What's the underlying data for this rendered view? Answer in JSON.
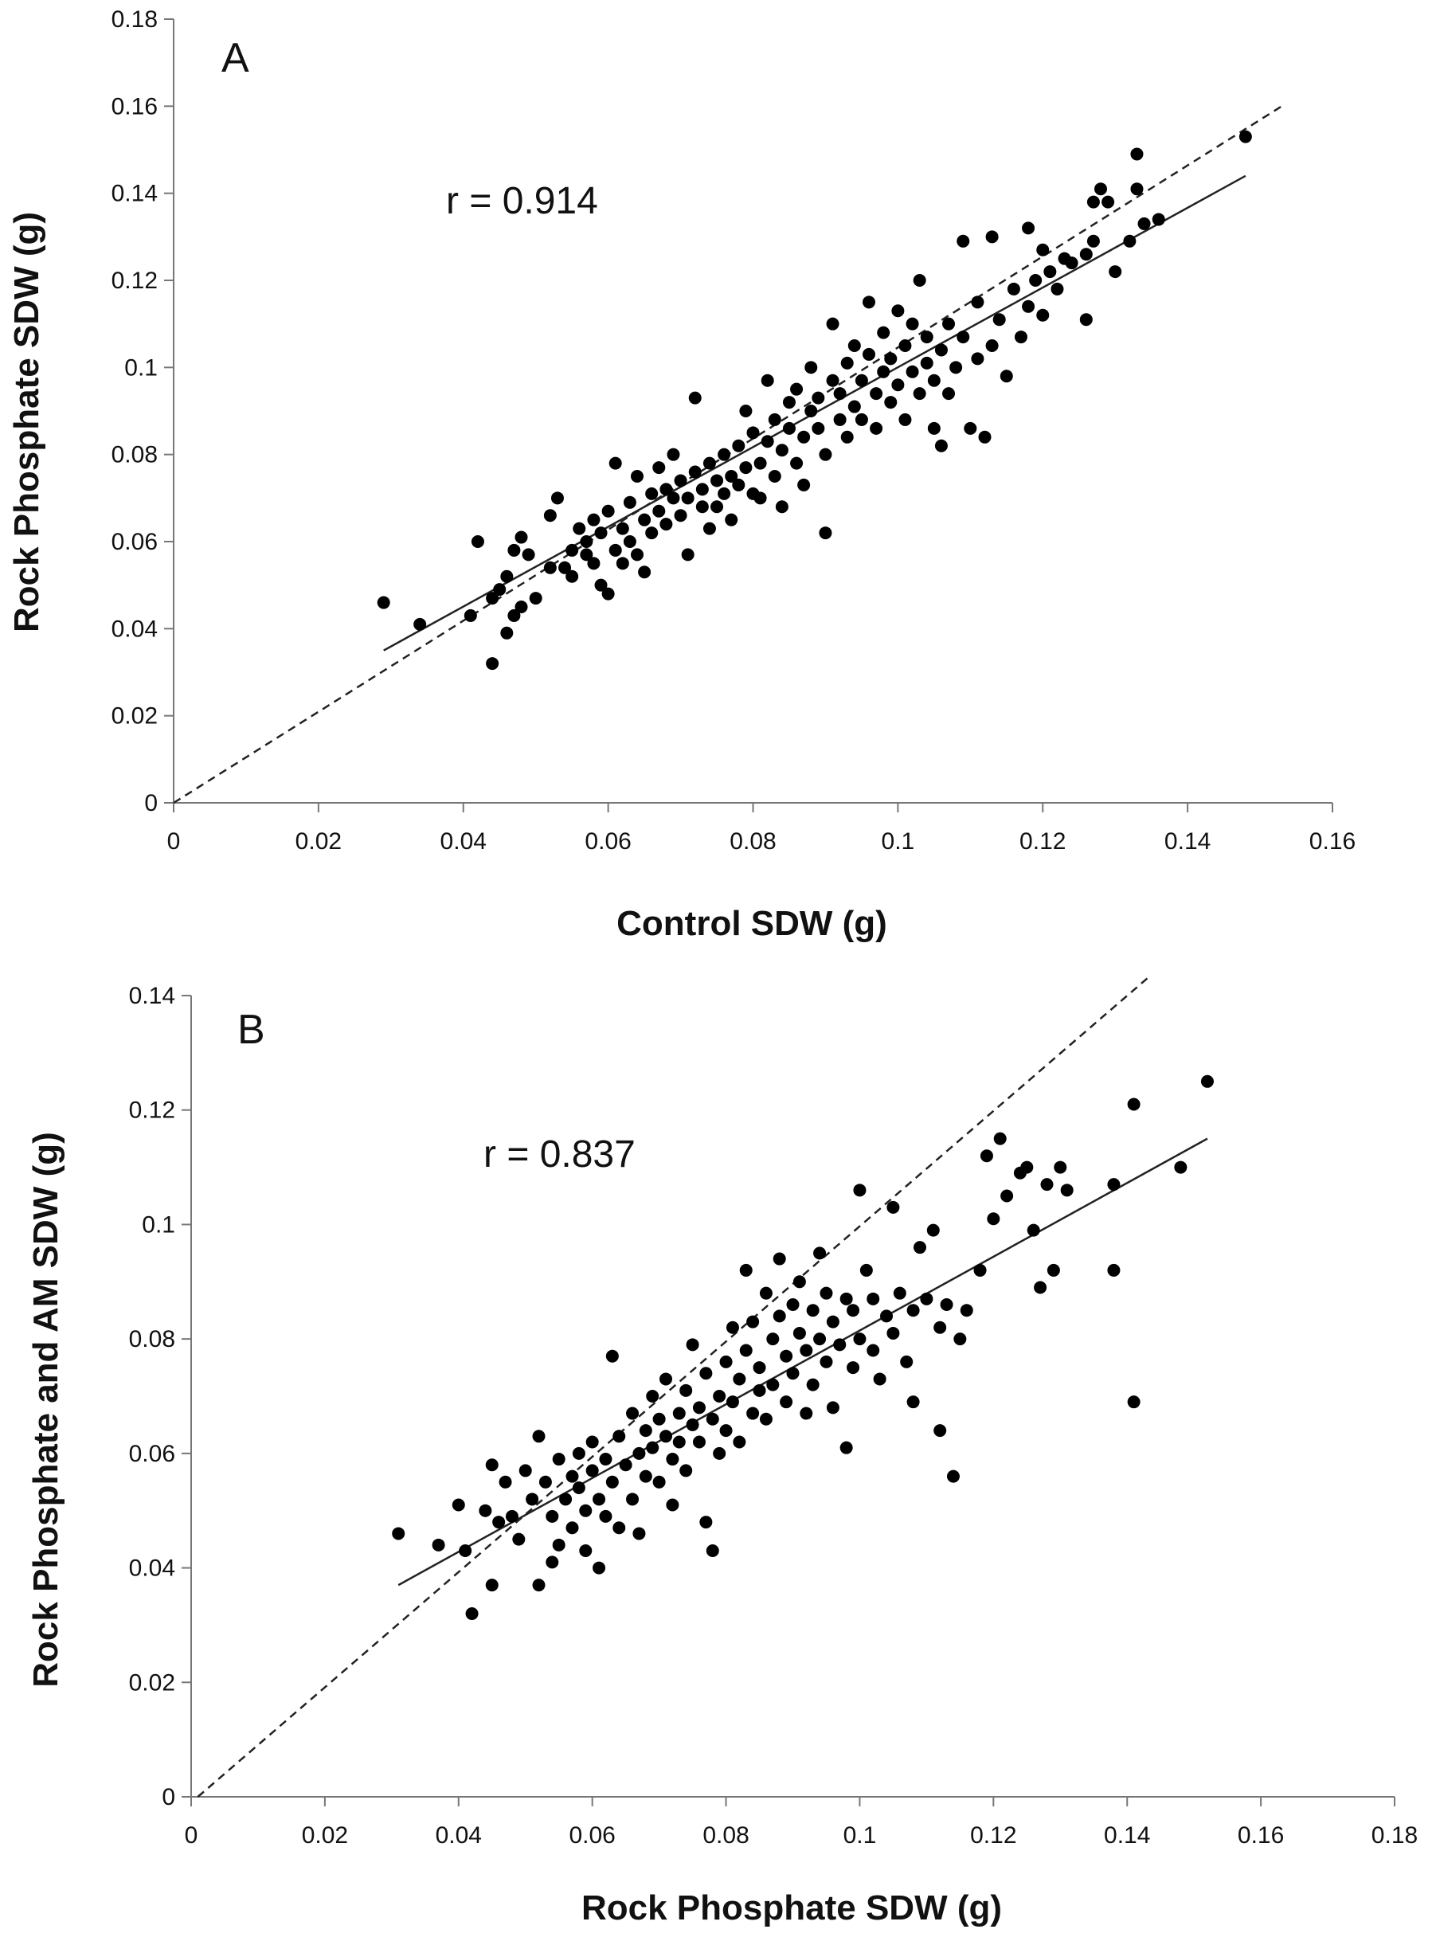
{
  "chart_data": [
    {
      "type": "scatter",
      "panel_label": "A",
      "r_label": "r = 0.914",
      "xlabel": "Control SDW (g)",
      "ylabel": "Rock Phosphate SDW (g)",
      "xlim": [
        0,
        0.16
      ],
      "ylim": [
        0,
        0.18
      ],
      "x_ticks": [
        "0",
        "0.02",
        "0.04",
        "0.06",
        "0.08",
        "0.1",
        "0.12",
        "0.14",
        "0.16"
      ],
      "y_ticks": [
        "0",
        "0.02",
        "0.04",
        "0.06",
        "0.08",
        "0.1",
        "0.12",
        "0.14",
        "0.16",
        "0.18"
      ],
      "fit_line": {
        "x1": 0.029,
        "y1": 0.035,
        "x2": 0.148,
        "y2": 0.144,
        "style": "solid"
      },
      "identity_line": {
        "x1": 0,
        "y1": 0,
        "x2": 0.153,
        "y2": 0.16,
        "style": "dashed"
      },
      "points": [
        [
          0.029,
          0.046
        ],
        [
          0.034,
          0.041
        ],
        [
          0.041,
          0.043
        ],
        [
          0.042,
          0.06
        ],
        [
          0.044,
          0.032
        ],
        [
          0.044,
          0.047
        ],
        [
          0.045,
          0.049
        ],
        [
          0.046,
          0.039
        ],
        [
          0.046,
          0.052
        ],
        [
          0.047,
          0.058
        ],
        [
          0.047,
          0.043
        ],
        [
          0.048,
          0.061
        ],
        [
          0.048,
          0.045
        ],
        [
          0.049,
          0.057
        ],
        [
          0.05,
          0.047
        ],
        [
          0.052,
          0.054
        ],
        [
          0.052,
          0.066
        ],
        [
          0.053,
          0.07
        ],
        [
          0.054,
          0.054
        ],
        [
          0.055,
          0.058
        ],
        [
          0.055,
          0.052
        ],
        [
          0.056,
          0.063
        ],
        [
          0.057,
          0.057
        ],
        [
          0.057,
          0.06
        ],
        [
          0.058,
          0.065
        ],
        [
          0.058,
          0.055
        ],
        [
          0.059,
          0.062
        ],
        [
          0.059,
          0.05
        ],
        [
          0.06,
          0.067
        ],
        [
          0.06,
          0.048
        ],
        [
          0.061,
          0.058
        ],
        [
          0.061,
          0.078
        ],
        [
          0.062,
          0.063
        ],
        [
          0.062,
          0.055
        ],
        [
          0.063,
          0.06
        ],
        [
          0.063,
          0.069
        ],
        [
          0.064,
          0.057
        ],
        [
          0.064,
          0.075
        ],
        [
          0.065,
          0.065
        ],
        [
          0.065,
          0.053
        ],
        [
          0.066,
          0.071
        ],
        [
          0.066,
          0.062
        ],
        [
          0.067,
          0.067
        ],
        [
          0.067,
          0.077
        ],
        [
          0.068,
          0.072
        ],
        [
          0.068,
          0.064
        ],
        [
          0.069,
          0.07
        ],
        [
          0.069,
          0.08
        ],
        [
          0.07,
          0.066
        ],
        [
          0.07,
          0.074
        ],
        [
          0.071,
          0.07
        ],
        [
          0.071,
          0.057
        ],
        [
          0.072,
          0.076
        ],
        [
          0.072,
          0.093
        ],
        [
          0.073,
          0.068
        ],
        [
          0.073,
          0.072
        ],
        [
          0.074,
          0.078
        ],
        [
          0.074,
          0.063
        ],
        [
          0.075,
          0.074
        ],
        [
          0.075,
          0.068
        ],
        [
          0.076,
          0.08
        ],
        [
          0.076,
          0.071
        ],
        [
          0.077,
          0.075
        ],
        [
          0.077,
          0.065
        ],
        [
          0.078,
          0.082
        ],
        [
          0.078,
          0.073
        ],
        [
          0.079,
          0.077
        ],
        [
          0.079,
          0.09
        ],
        [
          0.08,
          0.071
        ],
        [
          0.08,
          0.085
        ],
        [
          0.081,
          0.078
        ],
        [
          0.081,
          0.07
        ],
        [
          0.082,
          0.083
        ],
        [
          0.082,
          0.097
        ],
        [
          0.083,
          0.075
        ],
        [
          0.083,
          0.088
        ],
        [
          0.084,
          0.081
        ],
        [
          0.084,
          0.068
        ],
        [
          0.085,
          0.086
        ],
        [
          0.085,
          0.092
        ],
        [
          0.086,
          0.078
        ],
        [
          0.086,
          0.095
        ],
        [
          0.087,
          0.084
        ],
        [
          0.087,
          0.073
        ],
        [
          0.088,
          0.09
        ],
        [
          0.088,
          0.1
        ],
        [
          0.089,
          0.086
        ],
        [
          0.089,
          0.093
        ],
        [
          0.09,
          0.08
        ],
        [
          0.09,
          0.062
        ],
        [
          0.091,
          0.097
        ],
        [
          0.091,
          0.11
        ],
        [
          0.092,
          0.088
        ],
        [
          0.092,
          0.094
        ],
        [
          0.093,
          0.084
        ],
        [
          0.093,
          0.101
        ],
        [
          0.094,
          0.091
        ],
        [
          0.094,
          0.105
        ],
        [
          0.095,
          0.097
        ],
        [
          0.095,
          0.088
        ],
        [
          0.096,
          0.103
        ],
        [
          0.096,
          0.115
        ],
        [
          0.097,
          0.094
        ],
        [
          0.097,
          0.086
        ],
        [
          0.098,
          0.099
        ],
        [
          0.098,
          0.108
        ],
        [
          0.099,
          0.092
        ],
        [
          0.099,
          0.102
        ],
        [
          0.1,
          0.096
        ],
        [
          0.1,
          0.113
        ],
        [
          0.101,
          0.105
        ],
        [
          0.101,
          0.088
        ],
        [
          0.102,
          0.099
        ],
        [
          0.102,
          0.11
        ],
        [
          0.103,
          0.094
        ],
        [
          0.103,
          0.12
        ],
        [
          0.104,
          0.101
        ],
        [
          0.104,
          0.107
        ],
        [
          0.105,
          0.097
        ],
        [
          0.105,
          0.086
        ],
        [
          0.106,
          0.104
        ],
        [
          0.106,
          0.082
        ],
        [
          0.107,
          0.11
        ],
        [
          0.107,
          0.094
        ],
        [
          0.108,
          0.1
        ],
        [
          0.109,
          0.129
        ],
        [
          0.109,
          0.107
        ],
        [
          0.11,
          0.086
        ],
        [
          0.111,
          0.115
        ],
        [
          0.111,
          0.102
        ],
        [
          0.112,
          0.084
        ],
        [
          0.113,
          0.13
        ],
        [
          0.113,
          0.105
        ],
        [
          0.114,
          0.111
        ],
        [
          0.115,
          0.098
        ],
        [
          0.116,
          0.118
        ],
        [
          0.117,
          0.107
        ],
        [
          0.118,
          0.132
        ],
        [
          0.118,
          0.114
        ],
        [
          0.119,
          0.12
        ],
        [
          0.12,
          0.112
        ],
        [
          0.12,
          0.127
        ],
        [
          0.121,
          0.122
        ],
        [
          0.122,
          0.118
        ],
        [
          0.123,
          0.125
        ],
        [
          0.124,
          0.124
        ],
        [
          0.126,
          0.126
        ],
        [
          0.126,
          0.111
        ],
        [
          0.127,
          0.129
        ],
        [
          0.127,
          0.138
        ],
        [
          0.128,
          0.141
        ],
        [
          0.129,
          0.138
        ],
        [
          0.13,
          0.122
        ],
        [
          0.132,
          0.129
        ],
        [
          0.133,
          0.141
        ],
        [
          0.133,
          0.149
        ],
        [
          0.134,
          0.133
        ],
        [
          0.136,
          0.134
        ],
        [
          0.148,
          0.153
        ]
      ]
    },
    {
      "type": "scatter",
      "panel_label": "B",
      "r_label": "r = 0.837",
      "xlabel": "Rock Phosphate SDW (g)",
      "ylabel": "Rock Phosphate and AM SDW (g)",
      "xlim": [
        0,
        0.18
      ],
      "ylim": [
        0,
        0.14
      ],
      "x_ticks": [
        "0",
        "0.02",
        "0.04",
        "0.06",
        "0.08",
        "0.1",
        "0.12",
        "0.14",
        "0.16",
        "0.18"
      ],
      "y_ticks": [
        "0",
        "0.02",
        "0.04",
        "0.06",
        "0.08",
        "0.1",
        "0.12",
        "0.14"
      ],
      "fit_line": {
        "x1": 0.031,
        "y1": 0.037,
        "x2": 0.152,
        "y2": 0.115,
        "style": "solid"
      },
      "identity_line": {
        "x1": 0.001,
        "y1": 0,
        "x2": 0.143,
        "y2": 0.143,
        "style": "dashed"
      },
      "points": [
        [
          0.031,
          0.046
        ],
        [
          0.037,
          0.044
        ],
        [
          0.04,
          0.051
        ],
        [
          0.041,
          0.043
        ],
        [
          0.042,
          0.032
        ],
        [
          0.044,
          0.05
        ],
        [
          0.045,
          0.037
        ],
        [
          0.045,
          0.058
        ],
        [
          0.046,
          0.048
        ],
        [
          0.047,
          0.055
        ],
        [
          0.048,
          0.049
        ],
        [
          0.049,
          0.045
        ],
        [
          0.05,
          0.057
        ],
        [
          0.051,
          0.052
        ],
        [
          0.052,
          0.037
        ],
        [
          0.052,
          0.063
        ],
        [
          0.053,
          0.055
        ],
        [
          0.054,
          0.041
        ],
        [
          0.054,
          0.049
        ],
        [
          0.055,
          0.059
        ],
        [
          0.055,
          0.044
        ],
        [
          0.056,
          0.052
        ],
        [
          0.057,
          0.056
        ],
        [
          0.057,
          0.047
        ],
        [
          0.058,
          0.054
        ],
        [
          0.058,
          0.06
        ],
        [
          0.059,
          0.05
        ],
        [
          0.059,
          0.043
        ],
        [
          0.06,
          0.057
        ],
        [
          0.06,
          0.062
        ],
        [
          0.061,
          0.052
        ],
        [
          0.061,
          0.04
        ],
        [
          0.062,
          0.059
        ],
        [
          0.062,
          0.049
        ],
        [
          0.063,
          0.077
        ],
        [
          0.063,
          0.055
        ],
        [
          0.064,
          0.063
        ],
        [
          0.064,
          0.047
        ],
        [
          0.065,
          0.058
        ],
        [
          0.066,
          0.067
        ],
        [
          0.066,
          0.052
        ],
        [
          0.067,
          0.06
        ],
        [
          0.067,
          0.046
        ],
        [
          0.068,
          0.064
        ],
        [
          0.068,
          0.056
        ],
        [
          0.069,
          0.07
        ],
        [
          0.069,
          0.061
        ],
        [
          0.07,
          0.066
        ],
        [
          0.07,
          0.055
        ],
        [
          0.071,
          0.063
        ],
        [
          0.071,
          0.073
        ],
        [
          0.072,
          0.059
        ],
        [
          0.072,
          0.051
        ],
        [
          0.073,
          0.067
        ],
        [
          0.073,
          0.062
        ],
        [
          0.074,
          0.071
        ],
        [
          0.074,
          0.057
        ],
        [
          0.075,
          0.065
        ],
        [
          0.075,
          0.079
        ],
        [
          0.076,
          0.062
        ],
        [
          0.076,
          0.068
        ],
        [
          0.077,
          0.074
        ],
        [
          0.077,
          0.048
        ],
        [
          0.078,
          0.043
        ],
        [
          0.078,
          0.066
        ],
        [
          0.079,
          0.07
        ],
        [
          0.079,
          0.06
        ],
        [
          0.08,
          0.076
        ],
        [
          0.08,
          0.064
        ],
        [
          0.081,
          0.082
        ],
        [
          0.081,
          0.069
        ],
        [
          0.082,
          0.073
        ],
        [
          0.082,
          0.062
        ],
        [
          0.083,
          0.092
        ],
        [
          0.083,
          0.078
        ],
        [
          0.084,
          0.067
        ],
        [
          0.084,
          0.083
        ],
        [
          0.085,
          0.071
        ],
        [
          0.085,
          0.075
        ],
        [
          0.086,
          0.088
        ],
        [
          0.086,
          0.066
        ],
        [
          0.087,
          0.08
        ],
        [
          0.087,
          0.072
        ],
        [
          0.088,
          0.094
        ],
        [
          0.088,
          0.084
        ],
        [
          0.089,
          0.069
        ],
        [
          0.089,
          0.077
        ],
        [
          0.09,
          0.086
        ],
        [
          0.09,
          0.074
        ],
        [
          0.091,
          0.081
        ],
        [
          0.091,
          0.09
        ],
        [
          0.092,
          0.078
        ],
        [
          0.092,
          0.067
        ],
        [
          0.093,
          0.085
        ],
        [
          0.093,
          0.072
        ],
        [
          0.094,
          0.095
        ],
        [
          0.094,
          0.08
        ],
        [
          0.095,
          0.088
        ],
        [
          0.095,
          0.076
        ],
        [
          0.096,
          0.083
        ],
        [
          0.096,
          0.068
        ],
        [
          0.097,
          0.079
        ],
        [
          0.098,
          0.087
        ],
        [
          0.098,
          0.061
        ],
        [
          0.099,
          0.075
        ],
        [
          0.099,
          0.085
        ],
        [
          0.1,
          0.106
        ],
        [
          0.1,
          0.08
        ],
        [
          0.101,
          0.092
        ],
        [
          0.102,
          0.078
        ],
        [
          0.102,
          0.087
        ],
        [
          0.103,
          0.073
        ],
        [
          0.104,
          0.084
        ],
        [
          0.105,
          0.103
        ],
        [
          0.105,
          0.081
        ],
        [
          0.106,
          0.088
        ],
        [
          0.107,
          0.076
        ],
        [
          0.108,
          0.069
        ],
        [
          0.108,
          0.085
        ],
        [
          0.109,
          0.096
        ],
        [
          0.11,
          0.087
        ],
        [
          0.111,
          0.099
        ],
        [
          0.112,
          0.082
        ],
        [
          0.112,
          0.064
        ],
        [
          0.113,
          0.086
        ],
        [
          0.114,
          0.056
        ],
        [
          0.115,
          0.08
        ],
        [
          0.116,
          0.085
        ],
        [
          0.118,
          0.092
        ],
        [
          0.119,
          0.112
        ],
        [
          0.12,
          0.101
        ],
        [
          0.121,
          0.115
        ],
        [
          0.122,
          0.105
        ],
        [
          0.124,
          0.109
        ],
        [
          0.125,
          0.11
        ],
        [
          0.126,
          0.099
        ],
        [
          0.127,
          0.089
        ],
        [
          0.128,
          0.107
        ],
        [
          0.129,
          0.092
        ],
        [
          0.13,
          0.11
        ],
        [
          0.131,
          0.106
        ],
        [
          0.138,
          0.107
        ],
        [
          0.138,
          0.092
        ],
        [
          0.141,
          0.121
        ],
        [
          0.141,
          0.069
        ],
        [
          0.148,
          0.11
        ],
        [
          0.152,
          0.125
        ]
      ]
    }
  ]
}
